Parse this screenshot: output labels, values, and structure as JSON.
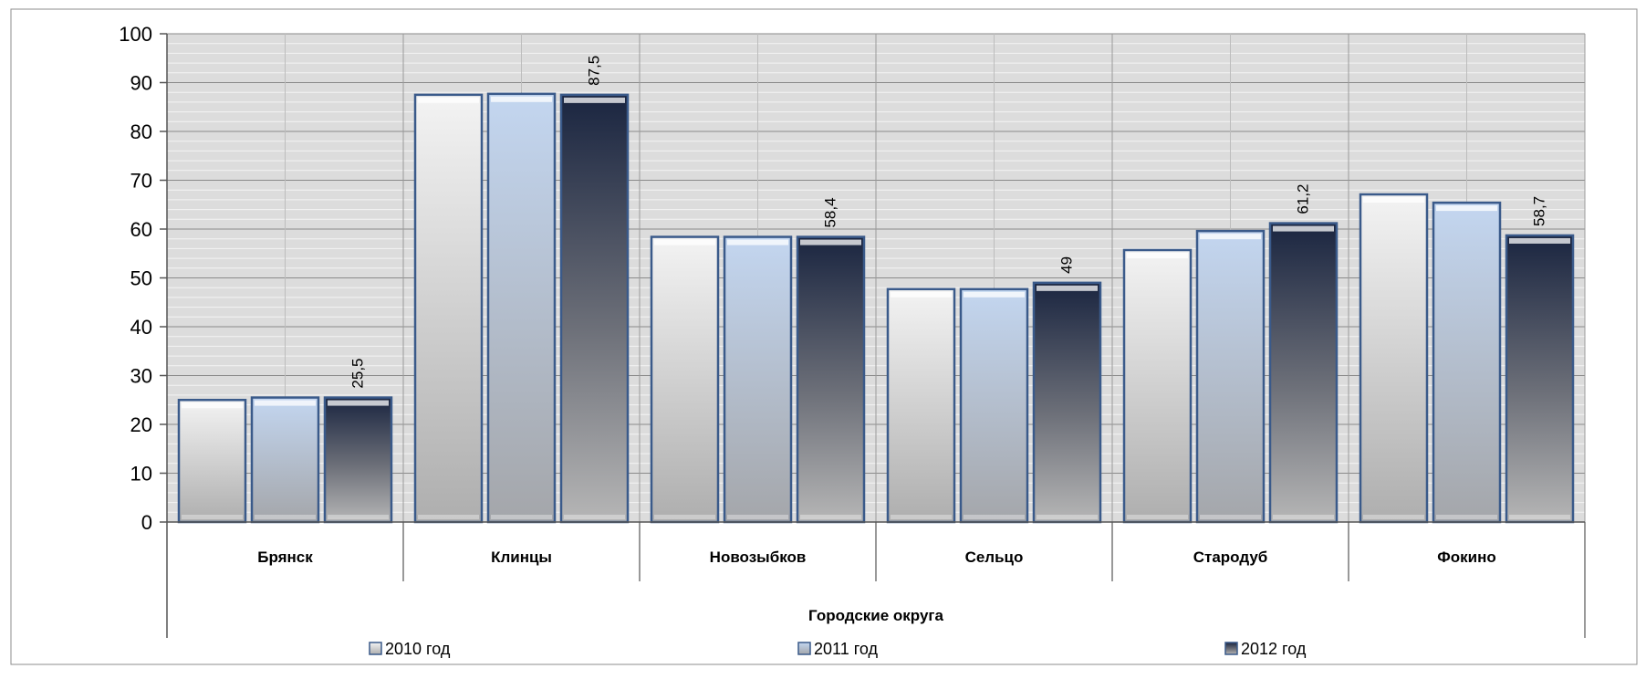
{
  "chart_data": {
    "type": "bar",
    "xlabel": "Городские округа",
    "ylim": [
      0,
      100
    ],
    "yticks": [
      0,
      10,
      20,
      30,
      40,
      50,
      60,
      70,
      80,
      90,
      100
    ],
    "categories": [
      "Брянск",
      "Клинцы",
      "Новозыбков",
      "Сельцо",
      "Стародуб",
      "Фокино"
    ],
    "series": [
      {
        "name": "2010 год",
        "values": [
          25,
          87.5,
          58.4,
          47.7,
          55.7,
          67.1
        ]
      },
      {
        "name": "2011 год",
        "values": [
          25.5,
          87.7,
          58.4,
          47.7,
          59.6,
          65.4
        ]
      },
      {
        "name": "2012 год",
        "values": [
          25.5,
          87.5,
          58.4,
          49,
          61.2,
          58.7
        ]
      }
    ],
    "data_labels": {
      "series": 2,
      "texts": [
        "25,5",
        "87,5",
        "58,4",
        "49",
        "61,2",
        "58,7"
      ]
    },
    "grid": {
      "major": true,
      "minor": true
    },
    "legend_position": "bottom",
    "colors": {
      "s2010": "#e2e2e2",
      "s2011": "#c0d2ec",
      "s2012": "#2a3752",
      "bar_border": "#3a5a8a"
    }
  }
}
